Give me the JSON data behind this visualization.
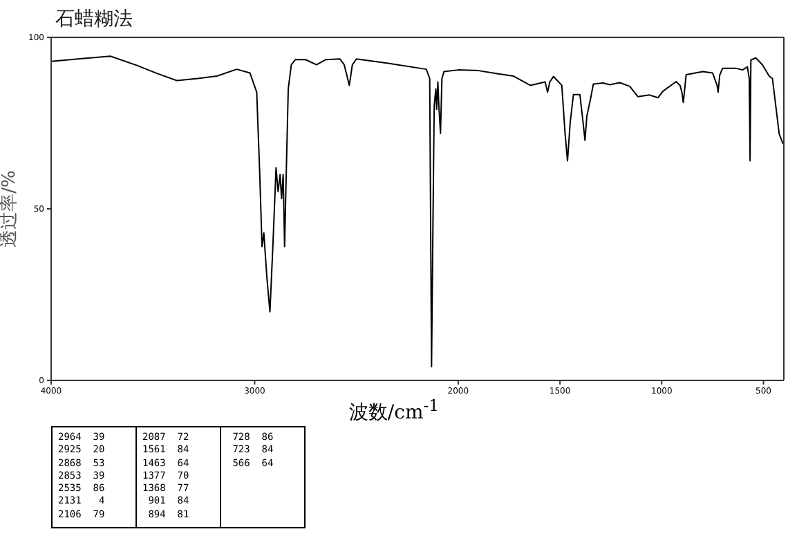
{
  "chart_data": {
    "type": "line",
    "title": "石蜡糊法",
    "xlabel": "波数/cm$^{-1}$",
    "ylabel": "透过率/%",
    "xlim": [
      4000,
      400
    ],
    "xticks": [
      4000,
      3000,
      2000,
      1500,
      1000,
      500
    ],
    "ylim": [
      0,
      100
    ],
    "yticks": [
      0,
      50,
      100
    ],
    "marker": "none",
    "line_style": "solid",
    "annotations": [
      "2964  39",
      "2925  20",
      "2868  53",
      "2853  39",
      "2535  86",
      "2131   4",
      "2106  79",
      "2087  72",
      "1561  84",
      "1463  64",
      "1377  70",
      "1368  77",
      " 901  84",
      " 894  81",
      " 728  86",
      " 723  84",
      " 566  64"
    ],
    "series": [
      {
        "color": "#000000",
        "x": [
          4000,
          3850,
          3709,
          3578,
          3480,
          3382,
          3280,
          3186,
          3088,
          3023,
          2990,
          2975,
          2964,
          2955,
          2940,
          2925,
          2910,
          2895,
          2885,
          2875,
          2868,
          2860,
          2853,
          2845,
          2835,
          2820,
          2800,
          2750,
          2696,
          2650,
          2581,
          2560,
          2535,
          2520,
          2500,
          2350,
          2157,
          2140,
          2131,
          2125,
          2118,
          2110,
          2106,
          2100,
          2095,
          2087,
          2080,
          2070,
          2000,
          1900,
          1809,
          1728,
          1646,
          1573,
          1561,
          1550,
          1532,
          1491,
          1475,
          1463,
          1450,
          1434,
          1402,
          1388,
          1377,
          1368,
          1350,
          1336,
          1288,
          1255,
          1206,
          1157,
          1117,
          1060,
          1019,
          994,
          929,
          910,
          901,
          894,
          880,
          798,
          750,
          728,
          723,
          715,
          701,
          636,
          603,
          579,
          570,
          566,
          562,
          538,
          505,
          472,
          456,
          423,
          406,
          400
        ],
        "values": [
          93,
          93.8,
          94.5,
          91.8,
          89.5,
          87.4,
          88,
          88.7,
          90.7,
          89.6,
          84,
          60,
          39,
          43,
          30,
          20,
          40,
          62,
          55,
          60,
          53,
          60,
          39,
          60,
          85,
          92,
          93.5,
          93.5,
          92,
          93.5,
          93.7,
          92,
          86,
          92,
          93.7,
          92.5,
          90.7,
          88,
          4,
          40,
          80,
          85,
          79,
          87,
          80,
          72,
          88,
          90,
          90.5,
          90.3,
          89.4,
          88.7,
          86,
          87,
          84,
          87,
          88.6,
          86,
          72,
          64,
          75,
          83.3,
          83.3,
          76,
          70,
          77,
          82,
          86.4,
          86.7,
          86.2,
          86.8,
          85.7,
          82.7,
          83.2,
          82.4,
          84.3,
          87.1,
          86,
          84,
          81,
          89.1,
          90,
          89.6,
          86,
          84,
          89,
          91,
          91,
          90.5,
          91.4,
          88,
          64,
          93.4,
          94,
          92,
          88.7,
          88,
          71.9,
          69.2,
          69
        ]
      }
    ]
  }
}
